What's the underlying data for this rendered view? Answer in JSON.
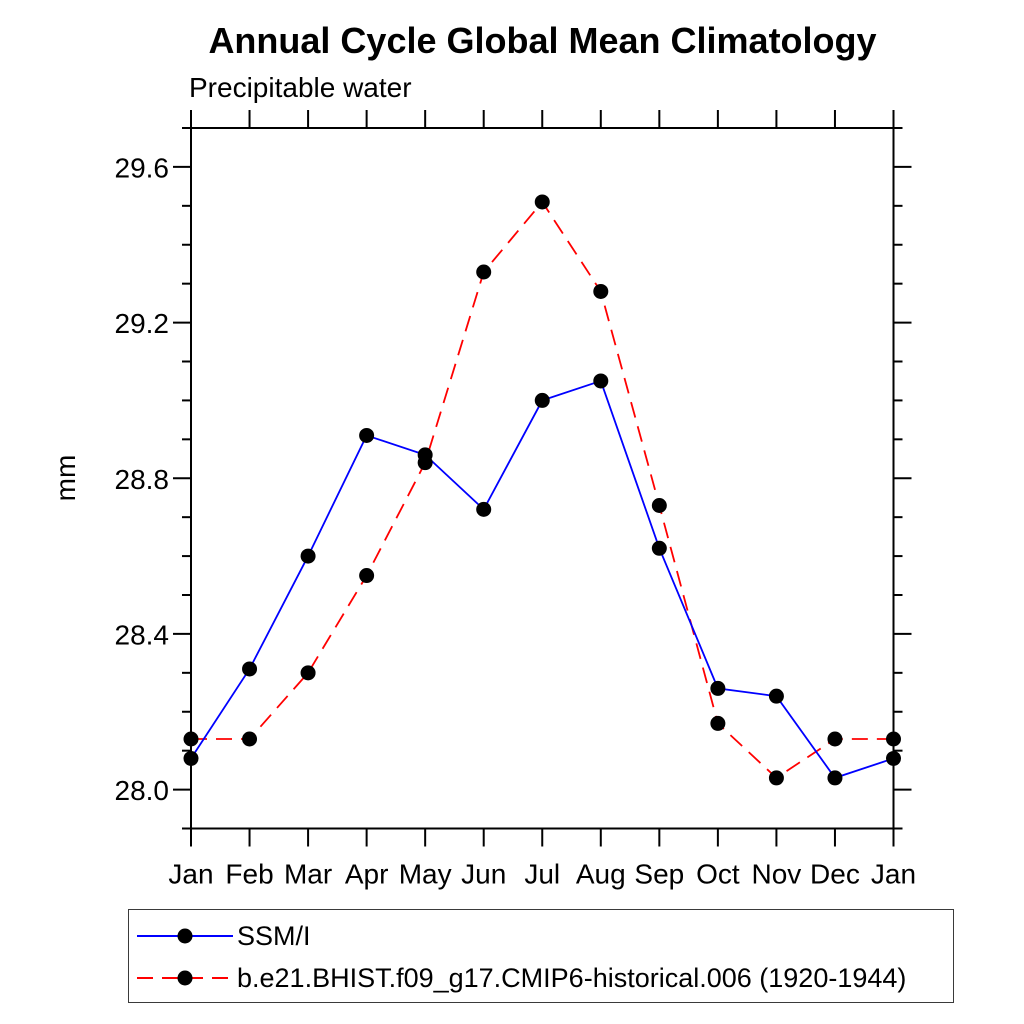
{
  "chart_data": {
    "type": "line",
    "title": "Annual Cycle Global Mean Climatology",
    "subtitle": "Precipitable water",
    "ylabel": "mm",
    "xlabel": "",
    "x_categories": [
      "Jan",
      "Feb",
      "Mar",
      "Apr",
      "May",
      "Jun",
      "Jul",
      "Aug",
      "Sep",
      "Oct",
      "Nov",
      "Dec",
      "Jan"
    ],
    "ylim": [
      27.9,
      29.7
    ],
    "y_major_ticks": [
      28.0,
      28.4,
      28.8,
      29.2,
      29.6
    ],
    "y_major_tick_labels": [
      "28.0",
      "28.4",
      "28.8",
      "29.2",
      "29.6"
    ],
    "y_minor_tick_step": 0.1,
    "grid": false,
    "legend_position": "bottom",
    "frame_color": "#000000",
    "series": [
      {
        "name": "SSM/I",
        "color": "#0000ff",
        "line_style": "solid",
        "marker": "circle",
        "marker_color": "#000000",
        "values": [
          28.08,
          28.31,
          28.6,
          28.91,
          28.86,
          28.72,
          29.0,
          29.05,
          28.62,
          28.26,
          28.24,
          28.03,
          28.08
        ]
      },
      {
        "name": "b.e21.BHIST.f09_g17.CMIP6-historical.006 (1920-1944)",
        "color": "#ff0000",
        "line_style": "dashed",
        "marker": "circle",
        "marker_color": "#000000",
        "values": [
          28.13,
          28.13,
          28.3,
          28.55,
          28.84,
          29.33,
          29.51,
          29.28,
          28.73,
          28.17,
          28.03,
          28.13,
          28.13
        ]
      }
    ]
  }
}
